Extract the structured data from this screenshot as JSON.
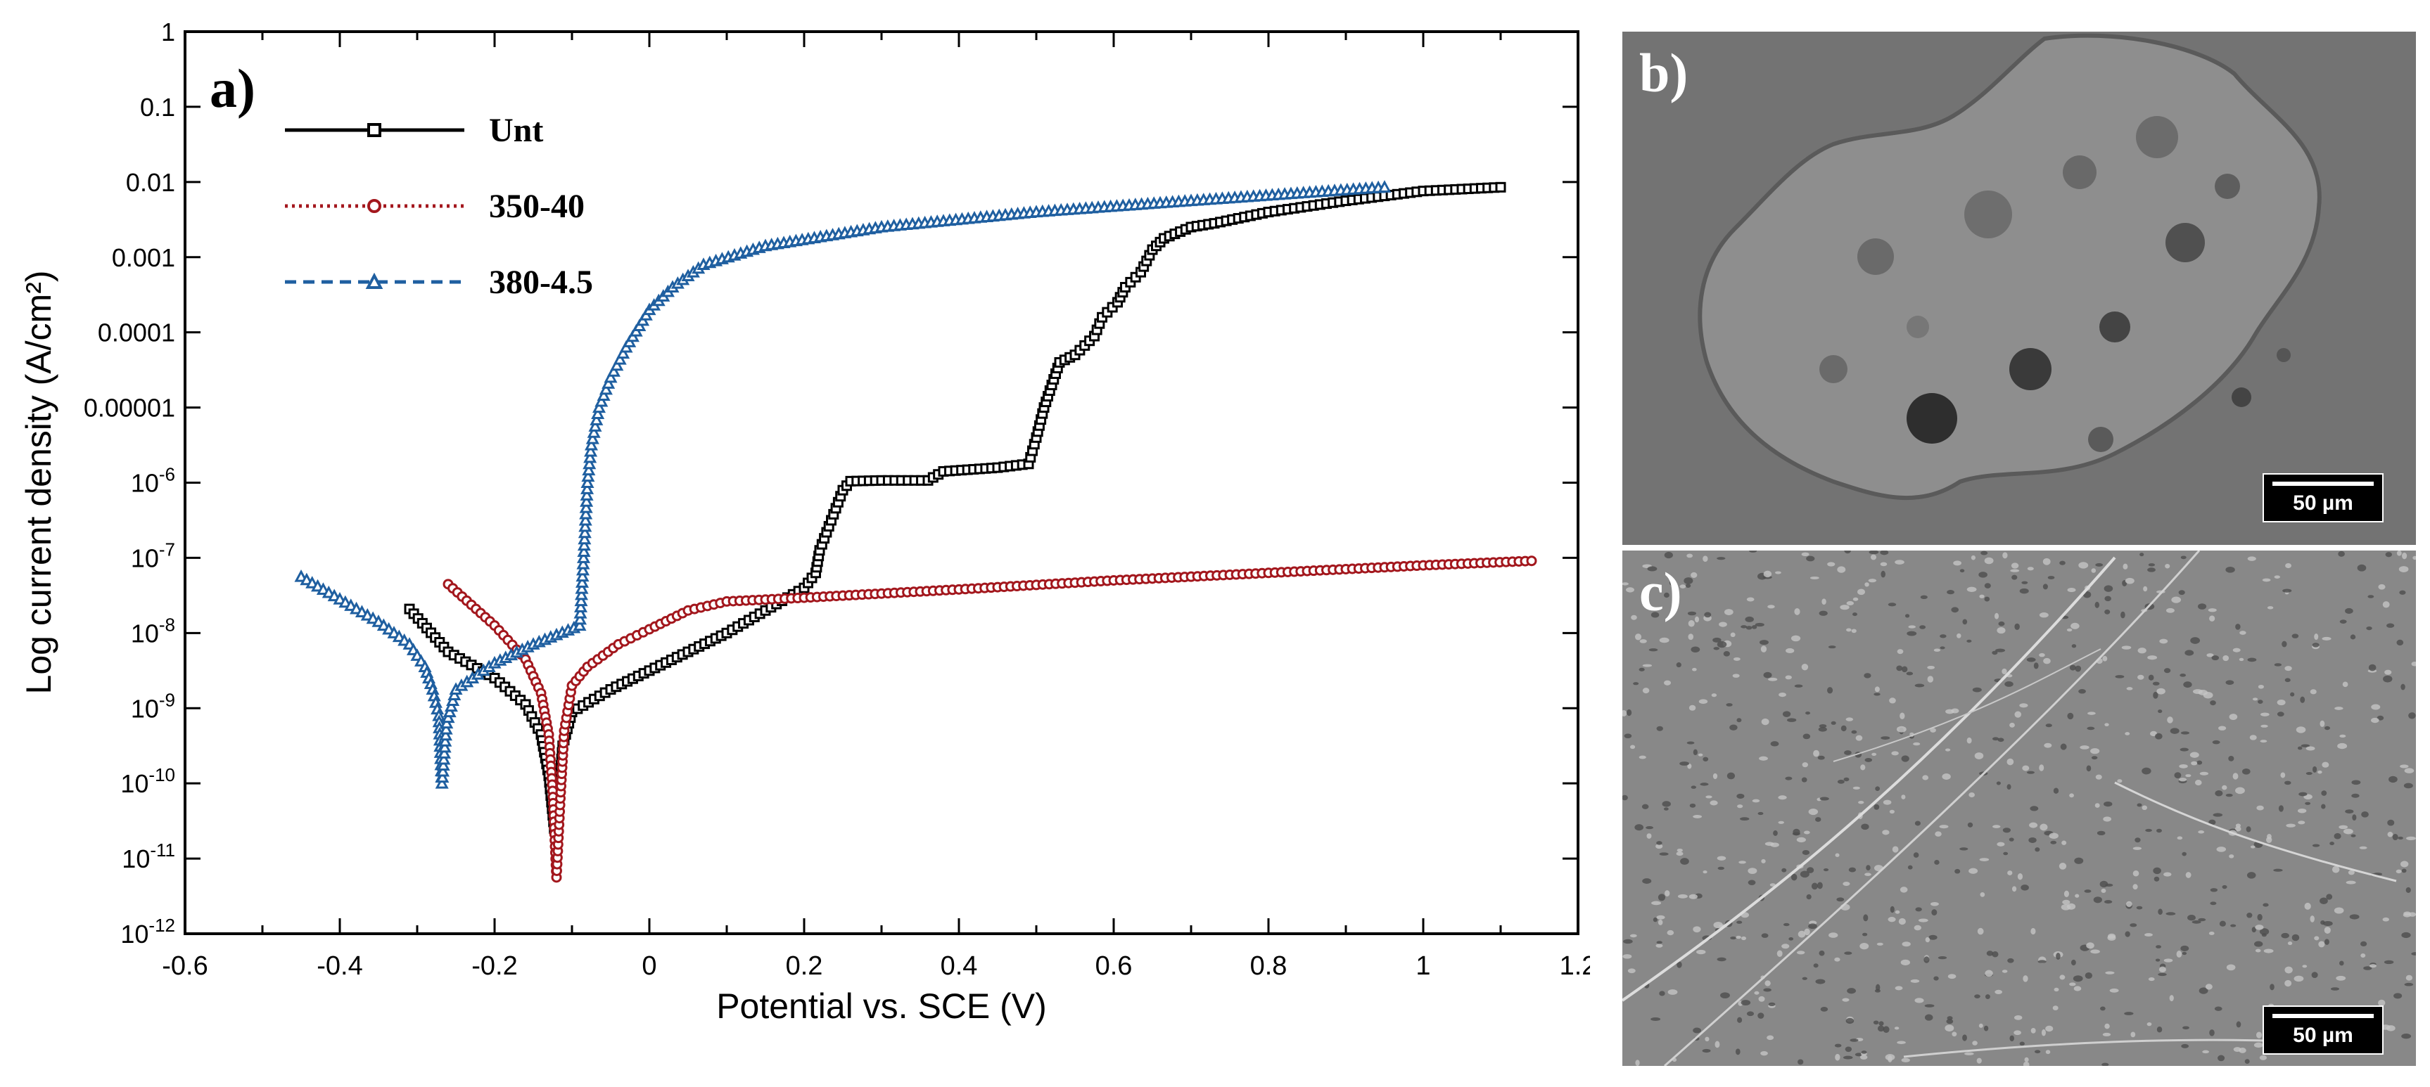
{
  "chart_data": {
    "type": "line",
    "panel_label": "a)",
    "xlabel": "Potential vs. SCE (V)",
    "ylabel": "Log current density (A/cm²)",
    "xlim": [
      -0.6,
      1.2
    ],
    "ylim_log10": [
      -12,
      0
    ],
    "x_ticks": [
      "-0.6",
      "-0.4",
      "-0.2",
      "0",
      "0.2",
      "0.4",
      "0.6",
      "0.8",
      "1",
      "1.2"
    ],
    "x_tick_values": [
      -0.6,
      -0.4,
      -0.2,
      0,
      0.2,
      0.4,
      0.6,
      0.8,
      1,
      1.2
    ],
    "y_ticks": [
      "1",
      "0.1",
      "0.01",
      "0.001",
      "0.0001",
      "0.00001",
      "10-6",
      "10-7",
      "10-8",
      "10-9",
      "10-10",
      "10-11",
      "10-12"
    ],
    "y_tick_values": [
      0,
      -1,
      -2,
      -3,
      -4,
      -5,
      -6,
      -7,
      -8,
      -9,
      -10,
      -11,
      -12
    ],
    "legend_position": "top-left",
    "series": [
      {
        "name": "Unt",
        "color": "#000000",
        "marker": "square",
        "dash": "solid",
        "points": [
          [
            -0.31,
            -7.68
          ],
          [
            -0.26,
            -8.25
          ],
          [
            -0.2,
            -8.6
          ],
          [
            -0.16,
            -8.95
          ],
          [
            -0.14,
            -9.35
          ],
          [
            -0.13,
            -9.9
          ],
          [
            -0.123,
            -10.6
          ],
          [
            -0.12,
            -10.7
          ],
          [
            -0.118,
            -10.2
          ],
          [
            -0.112,
            -9.5
          ],
          [
            -0.1,
            -9.05
          ],
          [
            -0.05,
            -8.75
          ],
          [
            0.0,
            -8.5
          ],
          [
            0.05,
            -8.25
          ],
          [
            0.1,
            -8.0
          ],
          [
            0.15,
            -7.7
          ],
          [
            0.2,
            -7.4
          ],
          [
            0.215,
            -7.2
          ],
          [
            0.22,
            -6.9
          ],
          [
            0.235,
            -6.5
          ],
          [
            0.25,
            -6.1
          ],
          [
            0.26,
            -5.98
          ],
          [
            0.3,
            -5.97
          ],
          [
            0.36,
            -5.97
          ],
          [
            0.38,
            -5.85
          ],
          [
            0.45,
            -5.8
          ],
          [
            0.49,
            -5.75
          ],
          [
            0.5,
            -5.4
          ],
          [
            0.51,
            -5.0
          ],
          [
            0.52,
            -4.7
          ],
          [
            0.53,
            -4.4
          ],
          [
            0.55,
            -4.3
          ],
          [
            0.575,
            -4.05
          ],
          [
            0.585,
            -3.8
          ],
          [
            0.605,
            -3.6
          ],
          [
            0.615,
            -3.4
          ],
          [
            0.635,
            -3.2
          ],
          [
            0.65,
            -2.9
          ],
          [
            0.665,
            -2.75
          ],
          [
            0.7,
            -2.6
          ],
          [
            0.73,
            -2.55
          ],
          [
            0.8,
            -2.4
          ],
          [
            0.9,
            -2.25
          ],
          [
            1.0,
            -2.12
          ],
          [
            1.1,
            -2.07
          ]
        ]
      },
      {
        "name": "350-40",
        "color": "#a3171d",
        "marker": "circle",
        "dash": "dotted",
        "points": [
          [
            -0.26,
            -7.35
          ],
          [
            -0.2,
            -7.9
          ],
          [
            -0.16,
            -8.35
          ],
          [
            -0.14,
            -8.8
          ],
          [
            -0.13,
            -9.35
          ],
          [
            -0.125,
            -10.1
          ],
          [
            -0.12,
            -11.25
          ],
          [
            -0.115,
            -10.2
          ],
          [
            -0.11,
            -9.3
          ],
          [
            -0.1,
            -8.7
          ],
          [
            -0.08,
            -8.45
          ],
          [
            -0.04,
            -8.15
          ],
          [
            0.0,
            -7.95
          ],
          [
            0.05,
            -7.7
          ],
          [
            0.1,
            -7.58
          ],
          [
            0.2,
            -7.53
          ],
          [
            0.4,
            -7.42
          ],
          [
            0.6,
            -7.3
          ],
          [
            0.8,
            -7.2
          ],
          [
            1.0,
            -7.1
          ],
          [
            1.14,
            -7.04
          ]
        ]
      },
      {
        "name": "380-4.5",
        "color": "#1f5fa0",
        "marker": "triangle",
        "dash": "dashed",
        "points": [
          [
            -0.45,
            -7.25
          ],
          [
            -0.4,
            -7.55
          ],
          [
            -0.35,
            -7.85
          ],
          [
            -0.31,
            -8.15
          ],
          [
            -0.29,
            -8.45
          ],
          [
            -0.28,
            -8.75
          ],
          [
            -0.272,
            -9.1
          ],
          [
            -0.268,
            -10.0
          ],
          [
            -0.262,
            -9.2
          ],
          [
            -0.25,
            -8.75
          ],
          [
            -0.2,
            -8.4
          ],
          [
            -0.15,
            -8.15
          ],
          [
            -0.09,
            -7.9
          ],
          [
            -0.085,
            -7.0
          ],
          [
            -0.08,
            -6.0
          ],
          [
            -0.075,
            -5.5
          ],
          [
            -0.065,
            -5.0
          ],
          [
            -0.05,
            -4.6
          ],
          [
            -0.03,
            -4.2
          ],
          [
            0.0,
            -3.7
          ],
          [
            0.03,
            -3.4
          ],
          [
            0.07,
            -3.1
          ],
          [
            0.15,
            -2.85
          ],
          [
            0.3,
            -2.6
          ],
          [
            0.5,
            -2.4
          ],
          [
            0.7,
            -2.25
          ],
          [
            0.95,
            -2.07
          ]
        ]
      }
    ]
  },
  "images": [
    {
      "label": "b)",
      "scale_bar": "50 µm"
    },
    {
      "label": "c)",
      "scale_bar": "50 µm"
    }
  ]
}
